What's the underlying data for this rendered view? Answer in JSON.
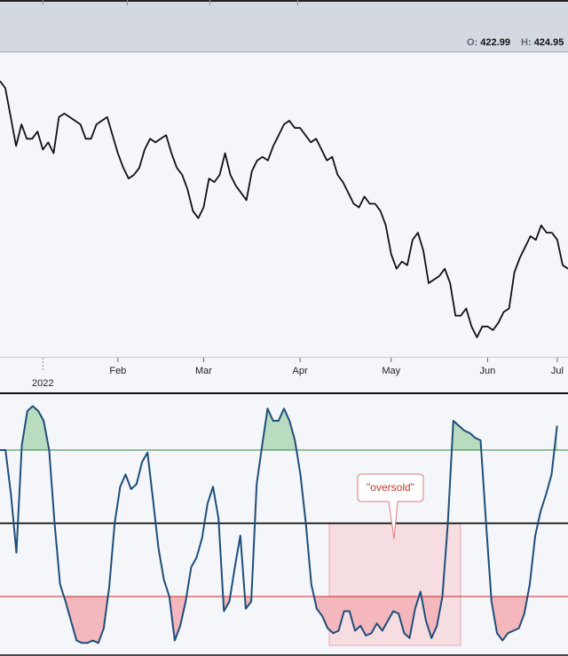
{
  "header": {
    "ohlc": [
      {
        "key": "O:",
        "value": "422.99"
      },
      {
        "key": "H:",
        "value": "424.95"
      }
    ]
  },
  "chart_data": [
    {
      "type": "line",
      "series": [
        {
          "y": [
            196,
            194,
            186,
            178,
            184,
            180,
            180,
            182,
            177,
            179,
            176,
            186,
            187,
            186,
            185,
            184,
            180,
            180,
            184,
            185,
            186,
            181,
            176,
            172,
            169,
            170,
            172,
            177,
            180,
            179,
            180,
            181,
            176,
            172,
            170,
            166,
            160,
            158,
            161,
            169,
            168,
            170,
            176,
            170,
            167,
            165,
            163,
            171,
            174,
            175,
            174,
            178,
            181,
            184,
            185,
            183,
            183,
            181,
            179,
            180,
            177,
            174,
            175,
            170,
            168,
            165,
            162,
            161,
            164,
            162,
            162,
            160,
            156,
            148,
            144,
            146,
            145,
            152,
            154,
            149,
            140,
            141,
            142,
            144,
            140,
            131,
            131,
            133,
            128,
            125,
            128,
            128,
            127,
            129,
            132,
            133,
            143,
            147,
            150,
            153,
            152,
            156,
            154,
            154,
            152,
            145,
            144
          ]
        }
      ],
      "xlim": [
        0,
        106
      ],
      "ylim": [
        125,
        200
      ],
      "axis": {
        "tick_labels": [
          "Feb",
          "Mar",
          "Apr",
          "May",
          "Jun",
          "Jul"
        ],
        "tick_x": [
          22,
          38,
          56,
          73,
          91,
          104
        ],
        "year_label": "2022",
        "year_x": 8
      },
      "color": "#111111"
    },
    {
      "type": "line",
      "series": [
        {
          "y": [
            -20,
            -20,
            -38,
            -62,
            -18,
            -4,
            -2,
            -4,
            -8,
            -20,
            -50,
            -75,
            -82,
            -90,
            -98,
            -99,
            -99,
            -98,
            -99,
            -93,
            -76,
            -50,
            -35,
            -30,
            -36,
            -34,
            -25,
            -21,
            -40,
            -60,
            -73,
            -80,
            -98,
            -92,
            -82,
            -68,
            -64,
            -56,
            -42,
            -35,
            -48,
            -86,
            -82,
            -68,
            -55,
            -85,
            -82,
            -34,
            -18,
            -3,
            -8,
            -8,
            -3,
            -8,
            -16,
            -30,
            -50,
            -75,
            -85,
            -88,
            -93,
            -95,
            -94,
            -86,
            -86,
            -94,
            -92,
            -96,
            -95,
            -91,
            -94,
            -90,
            -86,
            -87,
            -95,
            -97,
            -85,
            -78,
            -90,
            -97,
            -92,
            -80,
            -50,
            -8,
            -10,
            -12,
            -13,
            -15,
            -16,
            -50,
            -82,
            -95,
            -98,
            -95,
            -94,
            -93,
            -87,
            -75,
            -55,
            -45,
            -38,
            -30,
            -10
          ]
        }
      ],
      "xlim": [
        0,
        104
      ],
      "ylim": [
        -100,
        0
      ],
      "levels": [
        -20,
        -50,
        -80
      ],
      "annotations": [
        "\"oversold\""
      ],
      "colors": {
        "line": "#1f4e79",
        "overbought_fill": "#b9dcc0",
        "oversold_fill": "#f4b7bd",
        "overbought_line": "#2e8b3a",
        "oversold_line": "#c62828",
        "midline": "#111111",
        "highlight_fill": "#f6d3d6",
        "highlight_stroke": "#e8a9ae",
        "annotation_text": "#c0392b"
      }
    }
  ]
}
